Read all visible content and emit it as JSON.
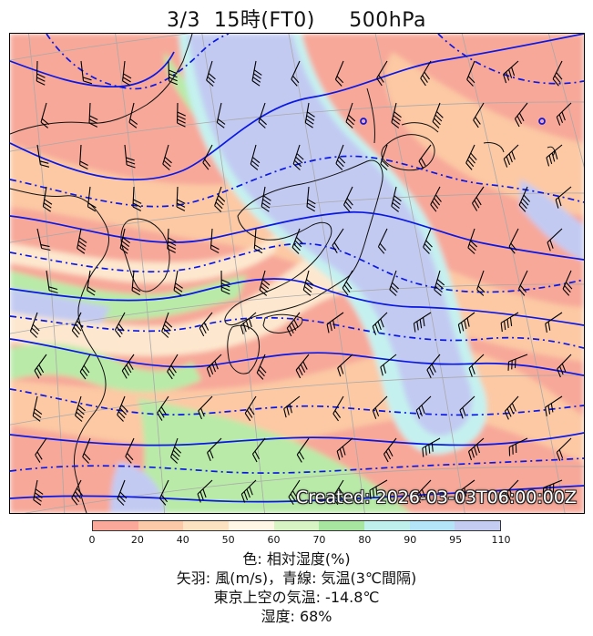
{
  "title": "3/3  15時(FT0)     500hPa",
  "created_stamp": "Created: 2026-03-03T06:00:00Z",
  "colorbar": {
    "ticks": [
      "0",
      "20",
      "40",
      "50",
      "60",
      "70",
      "80",
      "90",
      "95",
      "110"
    ],
    "colors": [
      "#f9a89a",
      "#fbc8a8",
      "#fde2c2",
      "#fff6e6",
      "#d8f4c4",
      "#a6e6a0",
      "#bff0ec",
      "#b4e4f7",
      "#c4ccf1"
    ]
  },
  "legend": {
    "line1": "色: 相対湿度(%)",
    "line2": "矢羽: 風(m/s)，青線: 気温(3℃間隔)",
    "line3": "東京上空の気温: -14.8℃",
    "line4": "湿度: 68%"
  },
  "map_colors": {
    "dry": "#f7a899",
    "mid": "#fcc9a4",
    "light": "#fde8cf",
    "green": "#b9eaa8",
    "cyan": "#c4f1ef",
    "blue": "#c2caf2",
    "isotherm": "#0a18e6",
    "coast": "#111111",
    "grid": "#a9a9a9"
  },
  "tokyo_temperature": -14.8,
  "tokyo_humidity": 68
}
